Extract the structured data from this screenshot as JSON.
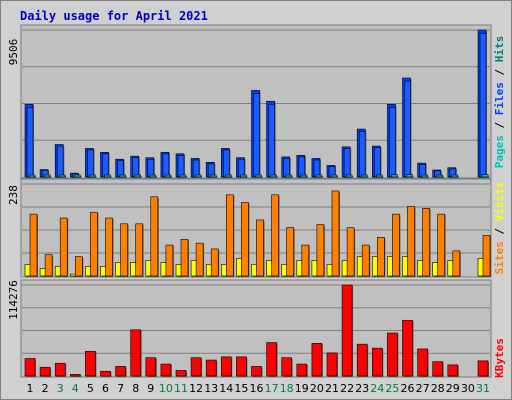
{
  "chart_data": {
    "type": "bar",
    "title": "Daily usage for April 2021",
    "days": [
      "1",
      "2",
      "3",
      "4",
      "5",
      "6",
      "7",
      "8",
      "9",
      "10",
      "11",
      "12",
      "13",
      "14",
      "15",
      "16",
      "17",
      "18",
      "19",
      "20",
      "21",
      "22",
      "23",
      "24",
      "25",
      "26",
      "27",
      "28",
      "29",
      "30",
      "31"
    ],
    "weekend_days": [
      "3",
      "4",
      "10",
      "11",
      "17",
      "18",
      "24",
      "25",
      "31"
    ],
    "colors": {
      "pages": "#00c0c0",
      "files": "#0040ff",
      "hits": "#008080",
      "visits": "#ffff00",
      "sites": "#ff8000",
      "kbytes": "#ff0000",
      "weekday_label": "#000000",
      "weekend_label": "#008040",
      "title": "#0000c0",
      "plot_bg": "#c0c0c0",
      "frame_bg": "#d0d0d0"
    },
    "panels": [
      {
        "id": "hits",
        "ymax": 9506,
        "ymax_label": "9506",
        "side_labels": [
          {
            "text": "Pages",
            "color": "#00c0c0"
          },
          {
            "text": " / ",
            "color": "#000000"
          },
          {
            "text": "Files",
            "color": "#0040ff"
          },
          {
            "text": " / ",
            "color": "#000000"
          },
          {
            "text": "Hits",
            "color": "#008080"
          }
        ],
        "series": [
          {
            "name": "Hits",
            "color": "#0040ff",
            "values": [
              4700,
              480,
              2100,
              250,
              1850,
              1600,
              1150,
              1350,
              1250,
              1600,
              1500,
              1200,
              950,
              1850,
              1250,
              5600,
              4900,
              1300,
              1400,
              1200,
              750,
              1950,
              3100,
              2000,
              4700,
              6400,
              900,
              450,
              600,
              null,
              9506
            ]
          },
          {
            "name": "Files",
            "color": "#0040ff",
            "values": [
              4500,
              430,
              2000,
              220,
              1750,
              1500,
              1050,
              1250,
              1150,
              1500,
              1400,
              1100,
              850,
              1750,
              1150,
              5400,
              4700,
              1200,
              1300,
              1100,
              680,
              1850,
              2950,
              1900,
              4500,
              6200,
              800,
              400,
              520,
              null,
              9300
            ]
          },
          {
            "name": "Pages",
            "color": "#00c0c0",
            "values": [
              120,
              60,
              100,
              40,
              110,
              90,
              70,
              80,
              75,
              95,
              85,
              80,
              60,
              110,
              75,
              130,
              120,
              80,
              85,
              80,
              55,
              100,
              110,
              100,
              140,
              150,
              70,
              50,
              55,
              null,
              160
            ]
          }
        ]
      },
      {
        "id": "sites",
        "ymax": 238,
        "ymax_label": "238",
        "side_labels": [
          {
            "text": "Sites",
            "color": "#ff8000"
          },
          {
            "text": " / ",
            "color": "#000000"
          },
          {
            "text": "Visits",
            "color": "#ffff00"
          }
        ],
        "series": [
          {
            "name": "Visits",
            "color": "#ffff00",
            "values": [
              30,
              20,
              25,
              5,
              25,
              25,
              35,
              35,
              40,
              35,
              30,
              40,
              30,
              30,
              45,
              30,
              40,
              30,
              40,
              40,
              30,
              40,
              50,
              50,
              50,
              50,
              40,
              35,
              40,
              null,
              45
            ]
          },
          {
            "name": "Sites",
            "color": "#ff8000",
            "values": [
              160,
              55,
              150,
              50,
              165,
              150,
              135,
              135,
              205,
              80,
              95,
              85,
              70,
              210,
              190,
              145,
              210,
              125,
              80,
              133,
              220,
              125,
              80,
              100,
              160,
              180,
              175,
              160,
              65,
              null,
              105
            ]
          }
        ]
      },
      {
        "id": "kbytes",
        "ymax": 114276,
        "ymax_label": "114276",
        "side_labels": [
          {
            "text": "KBytes",
            "color": "#ff0000"
          }
        ],
        "series": [
          {
            "name": "KBytes",
            "color": "#ff0000",
            "values": [
              22000,
              11000,
              16000,
              2000,
              31000,
              6000,
              12000,
              58000,
              23000,
              15000,
              7000,
              23000,
              20000,
              24000,
              24000,
              12000,
              42000,
              23000,
              15000,
              41000,
              29000,
              114276,
              40000,
              35000,
              54000,
              70000,
              34000,
              18000,
              14000,
              null,
              19000
            ]
          }
        ]
      }
    ]
  }
}
